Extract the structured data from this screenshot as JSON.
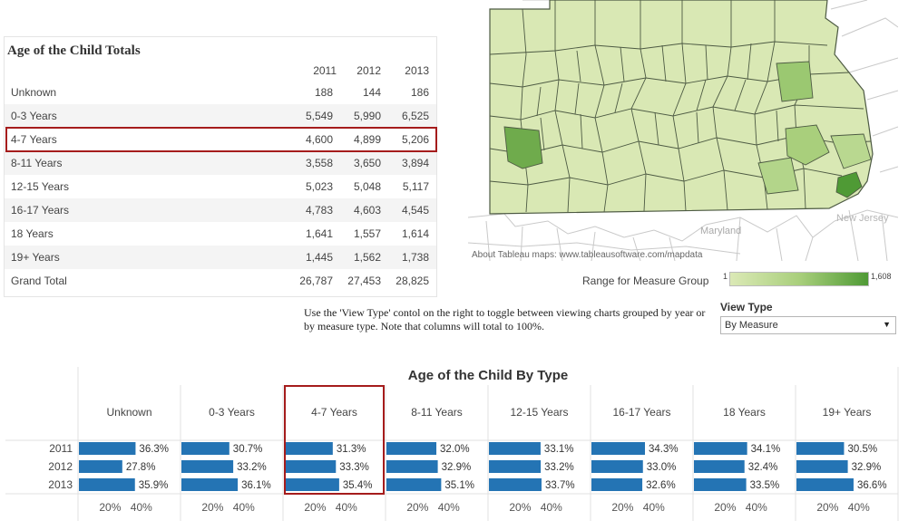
{
  "table": {
    "title": "Age of the Child Totals",
    "columns": [
      "2011",
      "2012",
      "2013"
    ],
    "rows": [
      {
        "label": "Unknown",
        "values": [
          "188",
          "144",
          "186"
        ]
      },
      {
        "label": "0-3 Years",
        "values": [
          "5,549",
          "5,990",
          "6,525"
        ]
      },
      {
        "label": "4-7 Years",
        "values": [
          "4,600",
          "4,899",
          "5,206"
        ]
      },
      {
        "label": "8-11 Years",
        "values": [
          "3,558",
          "3,650",
          "3,894"
        ]
      },
      {
        "label": "12-15 Years",
        "values": [
          "5,023",
          "5,048",
          "5,117"
        ]
      },
      {
        "label": "16-17 Years",
        "values": [
          "4,783",
          "4,603",
          "4,545"
        ]
      },
      {
        "label": "18 Years",
        "values": [
          "1,641",
          "1,557",
          "1,614"
        ]
      },
      {
        "label": "19+ Years",
        "values": [
          "1,445",
          "1,562",
          "1,738"
        ]
      },
      {
        "label": "Grand Total",
        "values": [
          "26,787",
          "27,453",
          "28,825"
        ]
      }
    ]
  },
  "map": {
    "labels": {
      "maryland": "Maryland",
      "new_jersey": "New Jersey"
    },
    "attribution": "About Tableau maps: www.tableausoftware.com/mapdata",
    "legend_title": "Range for  Measure Group",
    "legend_min": "1",
    "legend_max": "1,608",
    "colors": {
      "low": "#dbe9b6",
      "mid": "#a9cf7c",
      "high": "#4f9a35",
      "border": "#4d5a43"
    }
  },
  "instructions": "Use the 'View Type' contol on the right to toggle between viewing charts grouped by year or by measure type.  Note that columns will total to 100%.",
  "view_type": {
    "label": "View Type",
    "value": "By Measure"
  },
  "chart_data": {
    "type": "bar",
    "title": "Age of the Child By Type",
    "categories": [
      "Unknown",
      "0-3 Years",
      "4-7 Years",
      "8-11 Years",
      "12-15 Years",
      "16-17 Years",
      "18 Years",
      "19+ Years"
    ],
    "years": [
      "2011",
      "2012",
      "2013"
    ],
    "values": [
      [
        36.3,
        27.8,
        35.9
      ],
      [
        30.7,
        33.2,
        36.1
      ],
      [
        31.3,
        33.3,
        35.4
      ],
      [
        32.0,
        32.9,
        35.1
      ],
      [
        33.1,
        33.2,
        33.7
      ],
      [
        34.3,
        33.0,
        32.6
      ],
      [
        34.1,
        32.4,
        33.5
      ],
      [
        30.5,
        32.9,
        36.6
      ]
    ],
    "value_labels": [
      [
        "36.3%",
        "27.8%",
        "35.9%"
      ],
      [
        "30.7%",
        "33.2%",
        "36.1%"
      ],
      [
        "31.3%",
        "33.3%",
        "35.4%"
      ],
      [
        "32.0%",
        "32.9%",
        "35.1%"
      ],
      [
        "33.1%",
        "33.2%",
        "33.7%"
      ],
      [
        "34.3%",
        "33.0%",
        "32.6%"
      ],
      [
        "34.1%",
        "32.4%",
        "33.5%"
      ],
      [
        "30.5%",
        "32.9%",
        "36.6%"
      ]
    ],
    "xticks": [
      "20%",
      "40%"
    ],
    "xtick_values": [
      20,
      40
    ],
    "bar_color": "#2474b4",
    "highlight_color": "#a51c1c"
  }
}
